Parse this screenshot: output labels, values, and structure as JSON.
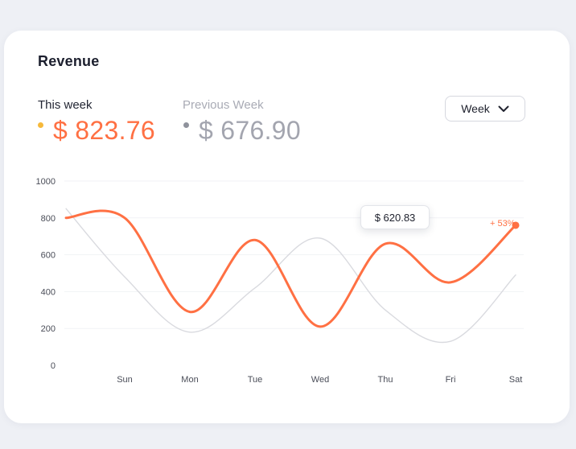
{
  "card": {
    "title": "Revenue"
  },
  "summary": {
    "current_label": "This week",
    "current_value": "$ 823.76",
    "previous_label": "Previous Week",
    "previous_value": "$ 676.90"
  },
  "period_select": {
    "selected": "Week"
  },
  "tooltip": {
    "text": "$ 620.83"
  },
  "change_badge": {
    "text": "+ 53%"
  },
  "colors": {
    "current": "#ff7043",
    "previous": "#d9dadf",
    "current_dot": "#f6b93b",
    "previous_dot": "#8f929c"
  },
  "chart_data": {
    "type": "line",
    "title": "",
    "xlabel": "",
    "ylabel": "",
    "ylim": [
      0,
      1000
    ],
    "yticks": [
      "0",
      "200",
      "400",
      "600",
      "800",
      "1000"
    ],
    "categories": [
      "Sun",
      "Mon",
      "Tue",
      "Wed",
      "Thu",
      "Fri",
      "Sat"
    ],
    "grid": true,
    "series": [
      {
        "key": "this_week",
        "color": "#ff7043",
        "x": [
          -0.9,
          0,
          1,
          2,
          3,
          4,
          5,
          6
        ],
        "values": [
          800,
          800,
          290,
          680,
          210,
          660,
          450,
          760
        ]
      },
      {
        "key": "previous_week",
        "color": "#d9dadf",
        "x": [
          -0.9,
          0,
          1,
          2,
          3,
          4,
          5,
          6
        ],
        "values": [
          850,
          480,
          180,
          420,
          690,
          300,
          130,
          490
        ]
      }
    ]
  }
}
